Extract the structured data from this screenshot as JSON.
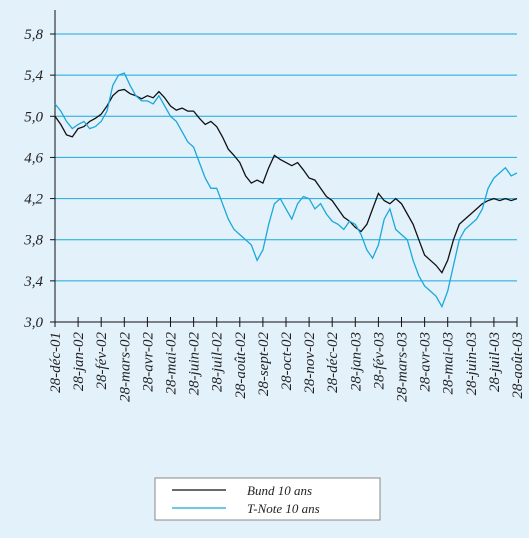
{
  "chart_data": {
    "type": "line",
    "categories": [
      "28-déc-01",
      null,
      null,
      null,
      "28-jan-02",
      null,
      null,
      null,
      "28-fév-02",
      null,
      null,
      null,
      "28-mars-02",
      null,
      null,
      null,
      "28-avr-02",
      null,
      null,
      null,
      "28-mai-02",
      null,
      null,
      null,
      "28-juin-02",
      null,
      null,
      null,
      "28-juil-02",
      null,
      null,
      null,
      "28-août-02",
      null,
      null,
      null,
      "28-sept-02",
      null,
      null,
      null,
      "28-oct-02",
      null,
      null,
      null,
      "28-nov-02",
      null,
      null,
      null,
      "28-déc-02",
      null,
      null,
      null,
      "28-jan-03",
      null,
      null,
      null,
      "28-fév-03",
      null,
      null,
      null,
      "28-mars-03",
      null,
      null,
      null,
      "28-avr-03",
      null,
      null,
      null,
      "28-mai-03",
      null,
      null,
      null,
      "28-juin-03",
      null,
      null,
      null,
      "28-juil-03",
      null,
      null,
      null,
      "28-août-03"
    ],
    "series": [
      {
        "name": "Bund 10 ans",
        "color": "#111111",
        "values": [
          5.0,
          4.92,
          4.82,
          4.8,
          4.88,
          4.9,
          4.95,
          4.98,
          5.02,
          5.1,
          5.2,
          5.25,
          5.26,
          5.22,
          5.2,
          5.17,
          5.2,
          5.18,
          5.24,
          5.18,
          5.1,
          5.06,
          5.08,
          5.05,
          5.05,
          4.98,
          4.92,
          4.95,
          4.9,
          4.8,
          4.68,
          4.62,
          4.55,
          4.42,
          4.35,
          4.38,
          4.35,
          4.5,
          4.62,
          4.58,
          4.55,
          4.52,
          4.55,
          4.48,
          4.4,
          4.38,
          4.3,
          4.22,
          4.18,
          4.1,
          4.02,
          3.98,
          3.92,
          3.88,
          3.95,
          4.1,
          4.25,
          4.18,
          4.15,
          4.2,
          4.15,
          4.05,
          3.95,
          3.8,
          3.65,
          3.6,
          3.55,
          3.48,
          3.6,
          3.8,
          3.95,
          4.0,
          4.05,
          4.1,
          4.15,
          4.18,
          4.2,
          4.18,
          4.2,
          4.18,
          4.2
        ]
      },
      {
        "name": "T-Note 10 ans",
        "color": "#1aa8dc",
        "values": [
          5.12,
          5.05,
          4.95,
          4.88,
          4.92,
          4.95,
          4.88,
          4.9,
          4.95,
          5.05,
          5.3,
          5.4,
          5.42,
          5.3,
          5.2,
          5.15,
          5.15,
          5.12,
          5.2,
          5.1,
          5.0,
          4.95,
          4.85,
          4.75,
          4.7,
          4.55,
          4.4,
          4.3,
          4.3,
          4.15,
          4.0,
          3.9,
          3.85,
          3.8,
          3.75,
          3.6,
          3.7,
          3.95,
          4.15,
          4.2,
          4.1,
          4.0,
          4.15,
          4.22,
          4.2,
          4.1,
          4.15,
          4.05,
          3.98,
          3.95,
          3.9,
          3.98,
          3.95,
          3.85,
          3.7,
          3.62,
          3.75,
          4.0,
          4.1,
          3.9,
          3.85,
          3.8,
          3.6,
          3.45,
          3.35,
          3.3,
          3.25,
          3.15,
          3.3,
          3.55,
          3.8,
          3.9,
          3.95,
          4.0,
          4.1,
          4.3,
          4.4,
          4.45,
          4.5,
          4.42,
          4.45
        ]
      }
    ],
    "ylim": [
      3.0,
      5.8
    ],
    "yticks": [
      {
        "value": 3.0,
        "label": "3,0"
      },
      {
        "value": 3.4,
        "label": "3,4"
      },
      {
        "value": 3.8,
        "label": "3,8"
      },
      {
        "value": 4.2,
        "label": "4,2"
      },
      {
        "value": 4.6,
        "label": "4,6"
      },
      {
        "value": 5.0,
        "label": "5,0"
      },
      {
        "value": 5.4,
        "label": "5,4"
      },
      {
        "value": 5.8,
        "label": "5,8"
      }
    ],
    "grid": true,
    "grid_color": "#1aa8dc",
    "legend": "bottom"
  }
}
